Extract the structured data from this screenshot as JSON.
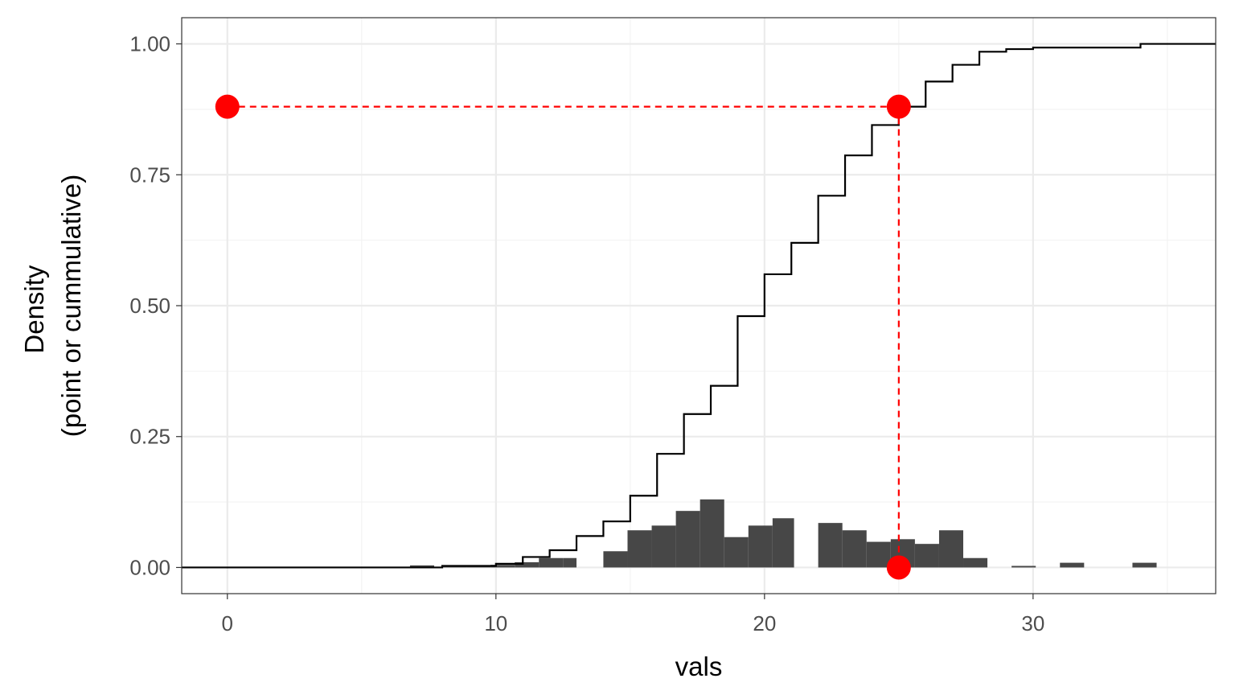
{
  "chart_data": {
    "type": "bar",
    "xlabel": "vals",
    "ylabel_lines": [
      "Density",
      "(point or cummulative)"
    ],
    "xlim": [
      -1.7,
      36.8
    ],
    "ylim": [
      -0.05,
      1.05
    ],
    "x_ticks": [
      0,
      10,
      20,
      30
    ],
    "x_tick_labels": [
      "0",
      "10",
      "20",
      "30"
    ],
    "y_ticks": [
      0,
      0.25,
      0.5,
      0.75,
      1.0
    ],
    "y_tick_labels": [
      "0.00",
      "0.25",
      "0.50",
      "0.75",
      "1.00"
    ],
    "grid": true,
    "series": [
      {
        "kind": "histogram",
        "color": "#474747",
        "bins": [
          {
            "x0": 6.8,
            "x1": 7.7,
            "y": 0.004
          },
          {
            "x0": 8.0,
            "x1": 8.9,
            "y": 0.003
          },
          {
            "x0": 8.9,
            "x1": 9.8,
            "y": 0.003
          },
          {
            "x0": 9.8,
            "x1": 10.7,
            "y": 0.005
          },
          {
            "x0": 10.7,
            "x1": 11.6,
            "y": 0.01
          },
          {
            "x0": 11.6,
            "x1": 12.5,
            "y": 0.018
          },
          {
            "x0": 12.5,
            "x1": 13.0,
            "y": 0.018
          },
          {
            "x0": 14.0,
            "x1": 14.9,
            "y": 0.031
          },
          {
            "x0": 14.9,
            "x1": 15.8,
            "y": 0.071
          },
          {
            "x0": 15.8,
            "x1": 16.7,
            "y": 0.08
          },
          {
            "x0": 16.7,
            "x1": 17.6,
            "y": 0.108
          },
          {
            "x0": 17.6,
            "x1": 18.5,
            "y": 0.13
          },
          {
            "x0": 18.5,
            "x1": 19.4,
            "y": 0.058
          },
          {
            "x0": 19.4,
            "x1": 20.3,
            "y": 0.08
          },
          {
            "x0": 20.3,
            "x1": 21.1,
            "y": 0.094
          },
          {
            "x0": 22.0,
            "x1": 22.9,
            "y": 0.085
          },
          {
            "x0": 22.9,
            "x1": 23.8,
            "y": 0.071
          },
          {
            "x0": 23.8,
            "x1": 24.7,
            "y": 0.049
          },
          {
            "x0": 24.7,
            "x1": 25.6,
            "y": 0.054
          },
          {
            "x0": 25.6,
            "x1": 26.5,
            "y": 0.045
          },
          {
            "x0": 26.5,
            "x1": 27.4,
            "y": 0.071
          },
          {
            "x0": 27.4,
            "x1": 28.3,
            "y": 0.018
          },
          {
            "x0": 29.2,
            "x1": 30.1,
            "y": 0.003
          },
          {
            "x0": 31.0,
            "x1": 31.9,
            "y": 0.009
          },
          {
            "x0": 33.7,
            "x1": 34.6,
            "y": 0.009
          }
        ]
      },
      {
        "kind": "step",
        "color": "#000000",
        "points": [
          {
            "x": -1.7,
            "y": 0.0
          },
          {
            "x": 7.0,
            "y": 0.0
          },
          {
            "x": 8.0,
            "y": 0.003
          },
          {
            "x": 10.0,
            "y": 0.007
          },
          {
            "x": 11.0,
            "y": 0.02
          },
          {
            "x": 12.0,
            "y": 0.033
          },
          {
            "x": 13.0,
            "y": 0.06
          },
          {
            "x": 14.0,
            "y": 0.088
          },
          {
            "x": 15.0,
            "y": 0.137
          },
          {
            "x": 16.0,
            "y": 0.217
          },
          {
            "x": 17.0,
            "y": 0.293
          },
          {
            "x": 18.0,
            "y": 0.347
          },
          {
            "x": 19.0,
            "y": 0.48
          },
          {
            "x": 20.0,
            "y": 0.56
          },
          {
            "x": 21.0,
            "y": 0.62
          },
          {
            "x": 22.0,
            "y": 0.71
          },
          {
            "x": 23.0,
            "y": 0.787
          },
          {
            "x": 24.0,
            "y": 0.845
          },
          {
            "x": 25.0,
            "y": 0.88
          },
          {
            "x": 26.0,
            "y": 0.928
          },
          {
            "x": 27.0,
            "y": 0.96
          },
          {
            "x": 28.0,
            "y": 0.985
          },
          {
            "x": 29.0,
            "y": 0.99
          },
          {
            "x": 30.0,
            "y": 0.993
          },
          {
            "x": 34.0,
            "y": 1.0
          },
          {
            "x": 36.8,
            "y": 1.0
          }
        ]
      }
    ],
    "annotations": {
      "color": "#ff0000",
      "dashed_segments": [
        {
          "x0": 0,
          "y0": 0.88,
          "x1": 25,
          "y1": 0.88
        },
        {
          "x0": 25,
          "y0": 0.88,
          "x1": 25,
          "y1": 0.0
        }
      ],
      "points": [
        {
          "x": 0,
          "y": 0.88
        },
        {
          "x": 25,
          "y": 0.88
        },
        {
          "x": 25,
          "y": 0.0
        }
      ]
    }
  }
}
